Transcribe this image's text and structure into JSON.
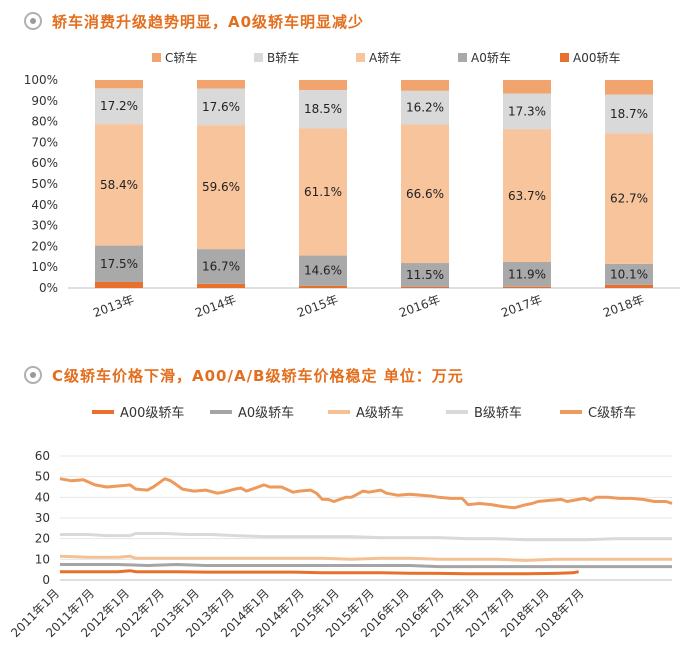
{
  "header1": "轿车消费升级趋势明显，A0级轿车明显减少",
  "header2": "C级轿车价格下滑，A00/A/B级轿车价格稳定 单位：万元",
  "colors": {
    "C": "#f2a46f",
    "B": "#d9d9d9",
    "A": "#f8c49c",
    "A0": "#a9a9a9",
    "A00": "#e8702a",
    "header": "#e36f1e"
  },
  "chart_data": [
    {
      "type": "bar",
      "stacked": true,
      "categories": [
        "2013年",
        "2014年",
        "2015年",
        "2016年",
        "2017年",
        "2018年"
      ],
      "series": [
        {
          "name": "A00轿车",
          "color": "#e8702a",
          "values": [
            2.9,
            2.0,
            1.0,
            0.5,
            0.6,
            1.5
          ]
        },
        {
          "name": "A0轿车",
          "color": "#a9a9a9",
          "values": [
            17.5,
            16.7,
            14.6,
            11.5,
            11.9,
            10.1
          ]
        },
        {
          "name": "A轿车",
          "color": "#f8c49c",
          "values": [
            58.4,
            59.6,
            61.1,
            66.6,
            63.7,
            62.7
          ]
        },
        {
          "name": "B轿车",
          "color": "#d9d9d9",
          "values": [
            17.2,
            17.6,
            18.5,
            16.2,
            17.3,
            18.7
          ]
        },
        {
          "name": "C轿车",
          "color": "#f2a46f",
          "values": [
            4.0,
            4.1,
            4.8,
            5.2,
            6.5,
            7.0
          ]
        }
      ],
      "data_labels": {
        "A0轿车": [
          "17.5%",
          "16.7%",
          "14.6%",
          "11.5%",
          "11.9%",
          "10.1%"
        ],
        "A轿车": [
          "58.4%",
          "59.6%",
          "61.1%",
          "66.6%",
          "63.7%",
          "62.7%"
        ],
        "B轿车": [
          "17.2%",
          "17.6%",
          "18.5%",
          "16.2%",
          "17.3%",
          "18.7%"
        ]
      },
      "legend_order": [
        "C轿车",
        "B轿车",
        "A轿车",
        "A0轿车",
        "A00轿车"
      ],
      "legend_position": "top",
      "yticks": [
        "0%",
        "10%",
        "20%",
        "30%",
        "40%",
        "50%",
        "60%",
        "70%",
        "80%",
        "90%",
        "100%"
      ],
      "ylim": [
        0,
        100
      ],
      "grid": false
    },
    {
      "type": "line",
      "legend": [
        "A00级轿车",
        "A0级轿车",
        "A级轿车",
        "B级轿车",
        "C级轿车"
      ],
      "legend_position": "top",
      "x_labels": [
        "2011年1月",
        "2011年7月",
        "2012年1月",
        "2012年7月",
        "2013年1月",
        "2013年7月",
        "2014年1月",
        "2014年7月",
        "2015年1月",
        "2015年7月",
        "2016年1月",
        "2016年7月",
        "2017年1月",
        "2017年7月",
        "2018年1月",
        "2018年7月"
      ],
      "x_start": "2011-01",
      "x_count": 96,
      "ylim": [
        0,
        60
      ],
      "yticks": [
        "0",
        "10",
        "20",
        "30",
        "40",
        "50",
        "60"
      ],
      "grid": true,
      "series": [
        {
          "name": "C级轿车",
          "color": "#ed9a5c",
          "points": [
            [
              0,
              49
            ],
            [
              2,
              48
            ],
            [
              4,
              48.5
            ],
            [
              6,
              46
            ],
            [
              8,
              45
            ],
            [
              10,
              45.5
            ],
            [
              12,
              46
            ],
            [
              13,
              44
            ],
            [
              15,
              43.5
            ],
            [
              16,
              45
            ],
            [
              18,
              49
            ],
            [
              19,
              48
            ],
            [
              20,
              46
            ],
            [
              21,
              44
            ],
            [
              23,
              43
            ],
            [
              25,
              43.5
            ],
            [
              27,
              42
            ],
            [
              28,
              42.5
            ],
            [
              30,
              44
            ],
            [
              31,
              44.5
            ],
            [
              32,
              43
            ],
            [
              33,
              44
            ],
            [
              35,
              46
            ],
            [
              36,
              45
            ],
            [
              38,
              45
            ],
            [
              40,
              42.5
            ],
            [
              41,
              43
            ],
            [
              43,
              43.5
            ],
            [
              44,
              42
            ],
            [
              45,
              39
            ],
            [
              46,
              39
            ],
            [
              47,
              38
            ],
            [
              49,
              40
            ],
            [
              50,
              40
            ],
            [
              52,
              43
            ],
            [
              53,
              42.5
            ],
            [
              55,
              43.5
            ],
            [
              56,
              42
            ],
            [
              58,
              41
            ],
            [
              60,
              41.5
            ],
            [
              62,
              41
            ],
            [
              64,
              40.5
            ],
            [
              65,
              40
            ],
            [
              67,
              39.5
            ],
            [
              69,
              39.5
            ],
            [
              70,
              36.5
            ],
            [
              72,
              37
            ],
            [
              74,
              36.5
            ],
            [
              76,
              35.5
            ],
            [
              78,
              35
            ],
            [
              80,
              36.5
            ],
            [
              81,
              37
            ],
            [
              82,
              38
            ],
            [
              84,
              38.5
            ],
            [
              86,
              39
            ],
            [
              87,
              38
            ],
            [
              89,
              39
            ],
            [
              90,
              39.5
            ],
            [
              91,
              38.5
            ],
            [
              92,
              40
            ],
            [
              94,
              40
            ],
            [
              96,
              39.5
            ],
            [
              98,
              39.5
            ],
            [
              100,
              39
            ],
            [
              102,
              38
            ],
            [
              104,
              38
            ],
            [
              105,
              37
            ]
          ]
        },
        {
          "name": "B级轿车",
          "color": "#d9d9d9",
          "points": [
            [
              0,
              22
            ],
            [
              5,
              22
            ],
            [
              8,
              21.5
            ],
            [
              12,
              21.5
            ],
            [
              13,
              22.5
            ],
            [
              18,
              22.5
            ],
            [
              22,
              22
            ],
            [
              26,
              22
            ],
            [
              30,
              21.5
            ],
            [
              35,
              21
            ],
            [
              40,
              21
            ],
            [
              45,
              21
            ],
            [
              50,
              21
            ],
            [
              55,
              20.5
            ],
            [
              60,
              20.5
            ],
            [
              65,
              20.5
            ],
            [
              70,
              20
            ],
            [
              75,
              20
            ],
            [
              80,
              19.5
            ],
            [
              85,
              19.5
            ],
            [
              90,
              19.5
            ],
            [
              95,
              20
            ],
            [
              100,
              20
            ],
            [
              105,
              20
            ]
          ]
        },
        {
          "name": "A级轿车",
          "color": "#f4c195",
          "points": [
            [
              0,
              11.5
            ],
            [
              5,
              11
            ],
            [
              10,
              11
            ],
            [
              12,
              11.5
            ],
            [
              13,
              10.5
            ],
            [
              18,
              10.5
            ],
            [
              25,
              10.5
            ],
            [
              30,
              10.5
            ],
            [
              35,
              10.5
            ],
            [
              40,
              10.5
            ],
            [
              45,
              10.5
            ],
            [
              50,
              10
            ],
            [
              55,
              10.5
            ],
            [
              60,
              10.5
            ],
            [
              65,
              10
            ],
            [
              70,
              10
            ],
            [
              75,
              10
            ],
            [
              80,
              9.5
            ],
            [
              85,
              10
            ],
            [
              90,
              10
            ],
            [
              95,
              10
            ],
            [
              100,
              10
            ],
            [
              105,
              10
            ]
          ]
        },
        {
          "name": "A0级轿车",
          "color": "#a5a5a5",
          "points": [
            [
              0,
              7.5
            ],
            [
              5,
              7.5
            ],
            [
              10,
              7.5
            ],
            [
              15,
              7
            ],
            [
              20,
              7.5
            ],
            [
              25,
              7
            ],
            [
              30,
              7
            ],
            [
              35,
              7
            ],
            [
              40,
              7
            ],
            [
              45,
              7
            ],
            [
              50,
              7
            ],
            [
              55,
              7
            ],
            [
              60,
              7
            ],
            [
              65,
              6.5
            ],
            [
              70,
              6.5
            ],
            [
              75,
              6.5
            ],
            [
              80,
              6.5
            ],
            [
              85,
              6.5
            ],
            [
              90,
              6.5
            ],
            [
              95,
              6.5
            ],
            [
              100,
              6.5
            ],
            [
              105,
              6.5
            ]
          ]
        },
        {
          "name": "A00级轿车",
          "color": "#e8702a",
          "points": [
            [
              0,
              4
            ],
            [
              5,
              4
            ],
            [
              10,
              4
            ],
            [
              12,
              4.5
            ],
            [
              13,
              4
            ],
            [
              20,
              4
            ],
            [
              25,
              3.8
            ],
            [
              30,
              3.8
            ],
            [
              35,
              3.8
            ],
            [
              40,
              3.8
            ],
            [
              45,
              3.5
            ],
            [
              50,
              3.5
            ],
            [
              55,
              3.5
            ],
            [
              60,
              3.3
            ],
            [
              65,
              3.2
            ],
            [
              70,
              3
            ],
            [
              75,
              3
            ],
            [
              80,
              3
            ],
            [
              85,
              3.2
            ],
            [
              88,
              3.5
            ],
            [
              89,
              4
            ]
          ]
        }
      ]
    }
  ]
}
